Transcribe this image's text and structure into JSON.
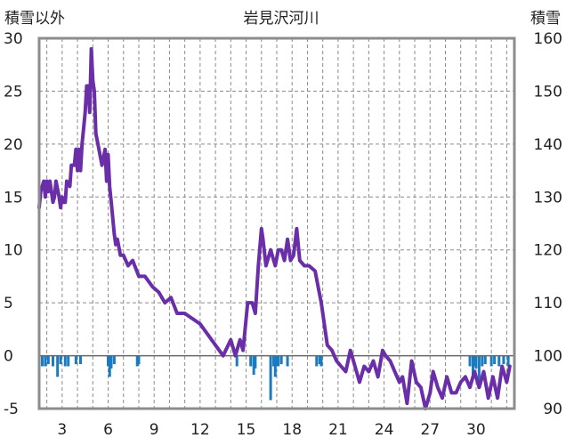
{
  "chart_data": {
    "type": "bar+line",
    "title": "岩見沢河川",
    "left_axis_label": "積雪以外",
    "right_axis_label": "積雪",
    "left_ylim": [
      -5,
      30
    ],
    "left_yticks": [
      -5,
      0,
      5,
      10,
      15,
      20,
      25,
      30
    ],
    "right_ylim": [
      90,
      160
    ],
    "right_yticks": [
      90,
      100,
      110,
      120,
      130,
      140,
      150,
      160
    ],
    "xlim": [
      1.5,
      32.5
    ],
    "xticks": [
      3,
      6,
      9,
      12,
      15,
      18,
      21,
      24,
      27,
      30
    ],
    "grid": true,
    "colors": {
      "bars": "#1a7bbf",
      "line": "#6a2ea8",
      "frame": "#8c8c8c",
      "grid": "#8c8c8c"
    },
    "series": [
      {
        "name": "",
        "kind": "bars",
        "axis": "left",
        "x": [
          1.7,
          1.9,
          2.1,
          2.4,
          2.7,
          2.9,
          3.2,
          3.4,
          3.9,
          4.2,
          6.0,
          6.1,
          6.2,
          6.4,
          7.9,
          8.0,
          14.4,
          15.3,
          15.5,
          15.6,
          16.6,
          16.8,
          16.9,
          17.0,
          17.1,
          17.3,
          17.7,
          19.6,
          19.8,
          19.9,
          29.6,
          29.8,
          29.9,
          30.0,
          30.2,
          30.4,
          30.6,
          31.0,
          31.2,
          31.5,
          31.8,
          32.1
        ],
        "values": [
          -1.0,
          -1.0,
          -0.8,
          -1.0,
          -2.0,
          -0.8,
          -1.0,
          -1.0,
          -0.8,
          -0.8,
          -1.0,
          -2.0,
          -1.2,
          -0.8,
          -1.0,
          -0.8,
          -1.0,
          -1.0,
          -1.8,
          -1.2,
          -4.2,
          -1.0,
          -2.0,
          -1.0,
          -1.0,
          -0.8,
          -1.0,
          -1.0,
          -0.8,
          -1.0,
          -1.0,
          -2.0,
          -1.0,
          -1.2,
          -2.5,
          -1.0,
          -0.8,
          -1.0,
          -0.8,
          -1.0,
          -0.8,
          -1.0
        ]
      },
      {
        "name": "",
        "kind": "line",
        "axis": "right",
        "x": [
          1.5,
          1.6,
          1.8,
          1.9,
          2.0,
          2.1,
          2.2,
          2.3,
          2.4,
          2.5,
          2.6,
          2.8,
          2.9,
          3.0,
          3.1,
          3.2,
          3.3,
          3.5,
          3.6,
          3.8,
          3.9,
          4.0,
          4.1,
          4.2,
          4.3,
          4.4,
          4.5,
          4.6,
          4.7,
          4.8,
          4.9,
          5.0,
          5.1,
          5.2,
          5.4,
          5.6,
          5.8,
          5.9,
          6.0,
          6.1,
          6.2,
          6.3,
          6.4,
          6.5,
          6.6,
          6.8,
          7.0,
          7.3,
          7.6,
          8.0,
          8.4,
          8.9,
          9.3,
          9.7,
          10.1,
          10.5,
          11.0,
          11.5,
          12.0,
          12.5,
          13.0,
          13.5,
          14.0,
          14.3,
          14.6,
          14.8,
          15.1,
          15.4,
          15.6,
          15.8,
          16.0,
          16.1,
          16.3,
          16.6,
          16.9,
          17.1,
          17.3,
          17.5,
          17.7,
          17.9,
          18.1,
          18.3,
          18.5,
          18.8,
          19.1,
          19.5,
          19.7,
          19.9,
          20.1,
          20.3,
          20.6,
          20.9,
          21.2,
          21.5,
          21.8,
          22.1,
          22.4,
          22.7,
          23.0,
          23.3,
          23.6,
          23.9,
          24.1,
          24.4,
          24.7,
          25.0,
          25.2,
          25.5,
          25.8,
          26.1,
          26.4,
          26.7,
          27.0,
          27.2,
          27.5,
          27.8,
          28.1,
          28.4,
          28.7,
          29.0,
          29.3,
          29.6,
          29.9,
          30.2,
          30.5,
          30.8,
          31.1,
          31.4,
          31.7,
          32.0,
          32.2
        ],
        "values": [
          128,
          131,
          133,
          130,
          133,
          131,
          133,
          131,
          129,
          130,
          133,
          130,
          128,
          130,
          129,
          129,
          133,
          132,
          136,
          136,
          139,
          135,
          139,
          135,
          140,
          143,
          146,
          151,
          151,
          146,
          158,
          152,
          150,
          142,
          139,
          136,
          139,
          133,
          138,
          132,
          129,
          126,
          123,
          121,
          122,
          119,
          119,
          117,
          118,
          115,
          115,
          113,
          112,
          110,
          111,
          108,
          108,
          107,
          106,
          104,
          102,
          100,
          103,
          100,
          103,
          101,
          110,
          110,
          108,
          117,
          124,
          122,
          117,
          120,
          117,
          120,
          120,
          118,
          122,
          118,
          119,
          124,
          118,
          117,
          117,
          116,
          113,
          110,
          106,
          102,
          101,
          99,
          98,
          97,
          101,
          98,
          95,
          98,
          97,
          99,
          96,
          101,
          100,
          99,
          97,
          95,
          96,
          91,
          99,
          95,
          94,
          90,
          93,
          97,
          94,
          92,
          96,
          93,
          93,
          95,
          96,
          94,
          97,
          94,
          97,
          92,
          96,
          92,
          98,
          95,
          98
        ]
      }
    ]
  }
}
